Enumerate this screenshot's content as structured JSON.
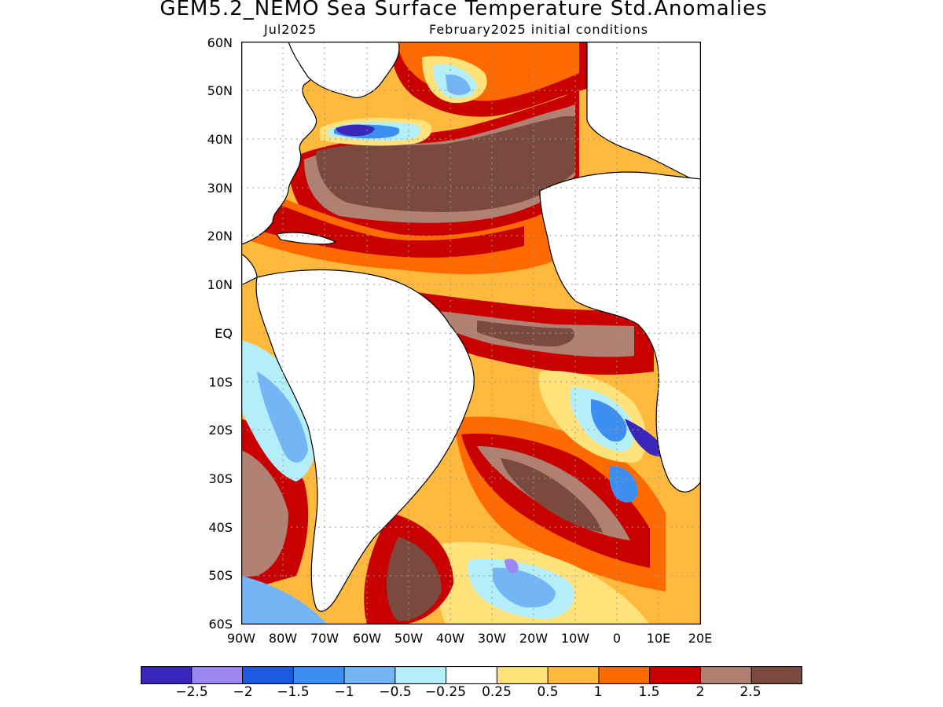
{
  "title": "GEM5.2_NEMO Sea Surface Temperature Std.Anomalies",
  "valid_month": "Jul2025",
  "initial_conditions": "February2025 initial conditions",
  "lat_ticks": [
    "60N",
    "50N",
    "40N",
    "30N",
    "20N",
    "10N",
    "EQ",
    "10S",
    "20S",
    "30S",
    "40S",
    "50S",
    "60S"
  ],
  "lon_ticks": [
    "90W",
    "80W",
    "70W",
    "60W",
    "50W",
    "40W",
    "30W",
    "20W",
    "10W",
    "0",
    "10E",
    "20E"
  ],
  "colorbar": {
    "colors": [
      "#3a26b8",
      "#9d87f2",
      "#1e5ae0",
      "#3c8ff0",
      "#74b5f6",
      "#b4eef9",
      "#ffffff",
      "#ffe27a",
      "#ffba3d",
      "#ff6a00",
      "#c80000",
      "#b08073",
      "#7a4a3f"
    ],
    "labels": [
      "-2.5",
      "-2",
      "-1.5",
      "-1",
      "-0.5",
      "-0.25",
      "0.25",
      "0.5",
      "1",
      "1.5",
      "2",
      "2.5"
    ]
  },
  "map_colors": {
    "land": "#ffffff",
    "coast": "#000000",
    "grid": "#9a9a9a"
  }
}
